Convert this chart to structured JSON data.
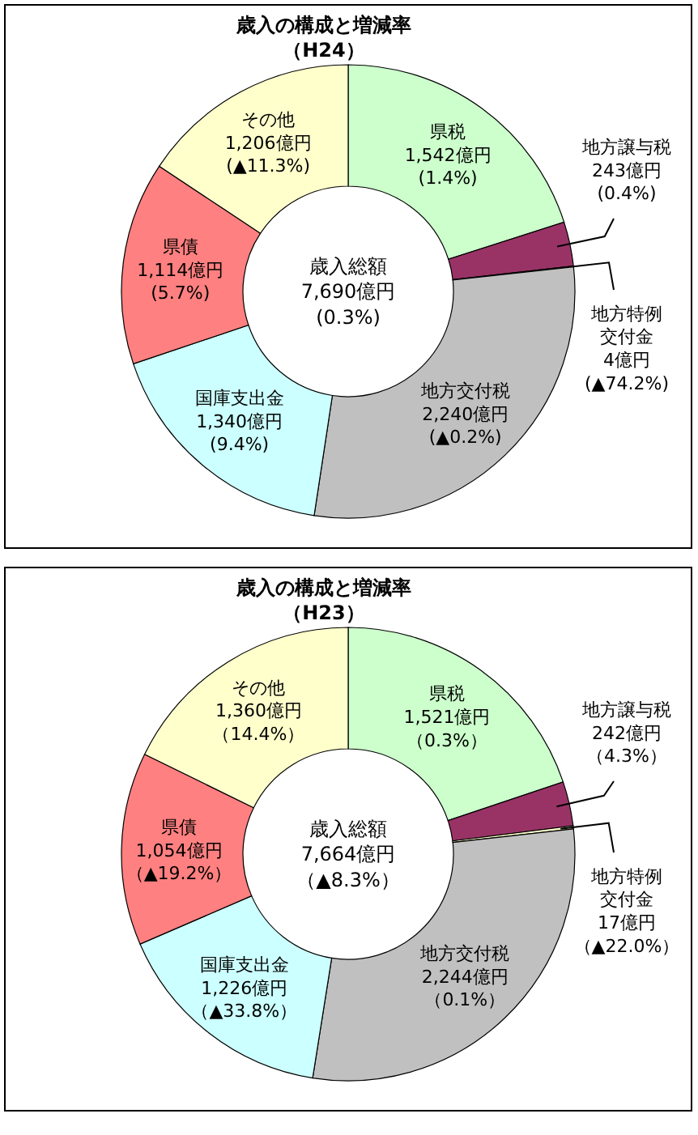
{
  "chart_data": [
    {
      "type": "donut",
      "title": "歳入の構成と増減率（H24）",
      "categories": [
        "県税",
        "地方譲与税",
        "地方特例交付金",
        "地方交付税",
        "国庫支出金",
        "県債",
        "その他"
      ],
      "values": [
        1542,
        243,
        4,
        2240,
        1340,
        1114,
        1206
      ],
      "colors": [
        "#ccffcc",
        "#993366",
        "#ffffcc",
        "#c0c0c0",
        "#ccffff",
        "#ff8080",
        "#ffffcc"
      ],
      "value_labels": [
        "1,542億円\n(1.4%)",
        "243億円\n(0.4%)",
        "4億円\n(▲74.2%)",
        "2,240億円\n(▲0.2%)",
        "1,340億円\n(9.4%)",
        "1,114億円\n(5.7%)",
        "1,206億円\n(▲11.3%)"
      ],
      "annotations": [
        "歳入総額\n7,690億円\n(0.3%)"
      ]
    },
    {
      "type": "donut",
      "title": "歳入の構成と増減率（H23）",
      "categories": [
        "県税",
        "地方譲与税",
        "地方特例交付金",
        "地方交付税",
        "国庫支出金",
        "県債",
        "その他"
      ],
      "values": [
        1521,
        242,
        17,
        2244,
        1226,
        1054,
        1360
      ],
      "colors": [
        "#ccffcc",
        "#993366",
        "#ffffcc",
        "#c0c0c0",
        "#ccffff",
        "#ff8080",
        "#ffffcc"
      ],
      "value_labels": [
        "1,521億円（0.3%）",
        "242億円（4.3%）",
        "17億円（▲22.0%）",
        "2,244億円（0.1%）",
        "1,226億円（▲33.8%）",
        "1,054億円（▲19.2%）",
        "1,360億円（14.4%）"
      ],
      "annotations": [
        "歳入総額\n7,664億円（▲8.3%）"
      ]
    }
  ]
}
